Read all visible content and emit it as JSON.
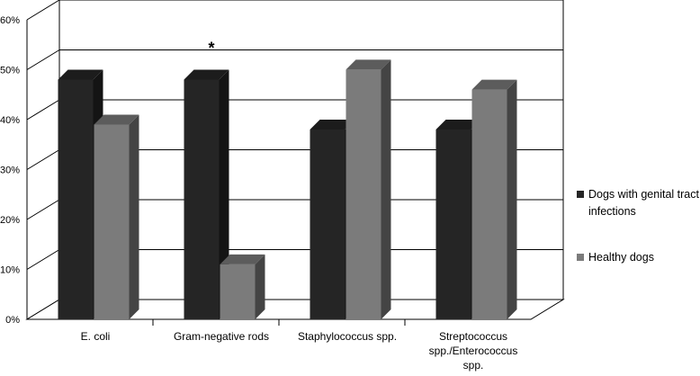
{
  "chart_data": {
    "type": "bar",
    "categories": [
      "E. coli",
      "Gram-negative rods",
      "Staphylococcus spp.",
      "Streptococcus spp./Enterococcus spp."
    ],
    "category_labels": [
      [
        "E. coli"
      ],
      [
        "Gram-negative rods"
      ],
      [
        "Staphylococcus spp."
      ],
      [
        "Streptococcus",
        "spp./Enterococcus",
        "spp."
      ]
    ],
    "series": [
      {
        "name": "Dogs with genital tract infections",
        "values": [
          50,
          50,
          40,
          40
        ],
        "color": "#252525"
      },
      {
        "name": "Healthy dogs",
        "values": [
          41,
          13,
          52,
          48
        ],
        "color": "#7b7b7b"
      }
    ],
    "ylim": [
      0,
      60
    ],
    "yticks": [
      0,
      10,
      20,
      30,
      40,
      50,
      60
    ],
    "ytick_labels": [
      "0%",
      "10%",
      "20%",
      "30%",
      "40%",
      "50%",
      "60%"
    ],
    "annotations": [
      {
        "category": "Gram-negative rods",
        "text": "*"
      }
    ],
    "legend_position": "right",
    "grid": true,
    "style": "3d-bar"
  },
  "legend": {
    "items": [
      {
        "label": "Dogs with genital tract infections",
        "color": "#252525"
      },
      {
        "label": "Healthy dogs",
        "color": "#7b7b7b"
      }
    ]
  }
}
